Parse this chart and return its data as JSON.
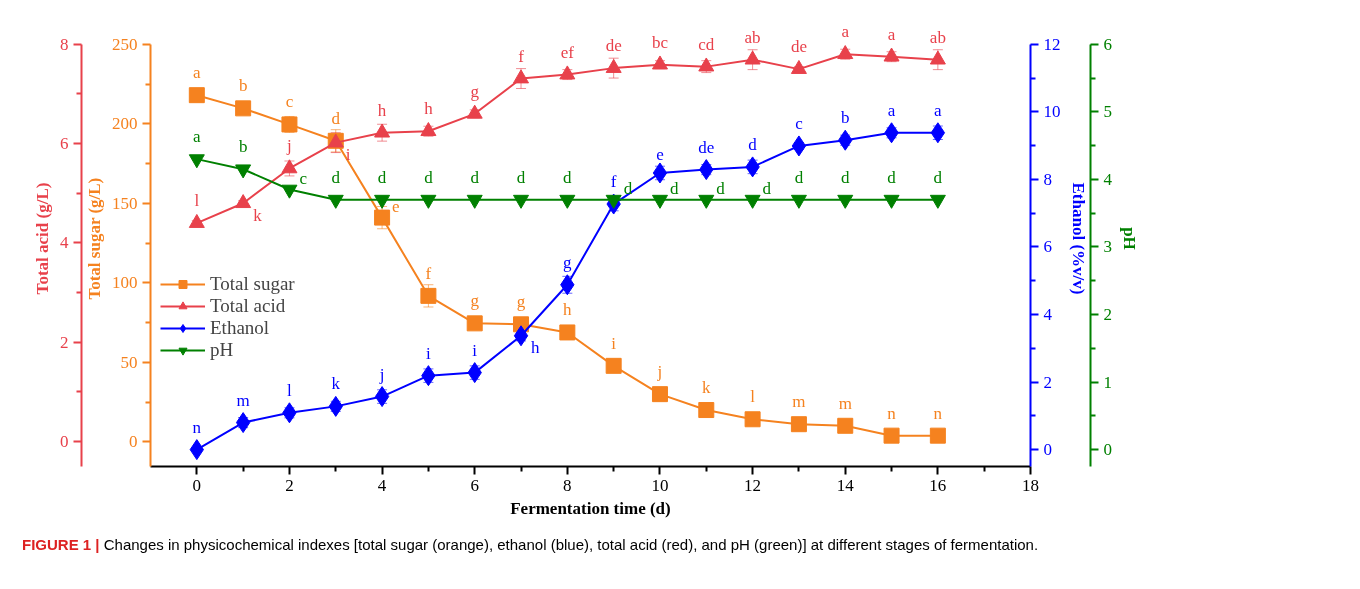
{
  "chart_data": [
    {
      "type": "line",
      "xlabel": "Fermentation time (d)",
      "ylabel": "Total sugar (g/L)",
      "y2label": "Ethanol (%v/v)",
      "y3label": "Total acid (g/L)",
      "x": [
        0,
        1,
        2,
        3,
        4,
        5,
        6,
        7,
        8,
        9,
        10,
        11,
        12,
        13,
        14,
        15,
        16
      ],
      "xlim": [
        -1,
        18
      ],
      "xticks": [
        0,
        2,
        4,
        6,
        8,
        10,
        12,
        14,
        16,
        18
      ],
      "ylim": [
        -15.5,
        250
      ],
      "yticks": [
        0,
        50,
        100,
        150,
        200,
        250
      ],
      "y2lim": [
        -0.5,
        12
      ],
      "y2ticks": [
        0,
        2,
        4,
        6,
        8,
        10,
        12
      ],
      "y3lim": [
        -0.5,
        8
      ],
      "y3ticks": [
        0,
        2,
        4,
        6,
        8
      ],
      "legend": "left",
      "grid": false,
      "line_style": "solid",
      "series": [
        {
          "name": "Total sugar",
          "color": "#f5821f",
          "marker": "square",
          "values": [
            218,
            209.7,
            199.6,
            189.3,
            141,
            91.8,
            74.5,
            73.9,
            68.8,
            47.8,
            30,
            20,
            14.2,
            11.1,
            10.1,
            3.9,
            3.9
          ],
          "errors": [
            1,
            1,
            5,
            7,
            7,
            7,
            3,
            3,
            4,
            4,
            4,
            4,
            3,
            1,
            1,
            1,
            1
          ],
          "value_labels": [
            "a",
            "b",
            "c",
            "d",
            "e",
            "f",
            "g",
            "g",
            "h",
            "i",
            "j",
            "k",
            "l",
            "m",
            "m",
            "n",
            "n"
          ]
        },
        {
          "name": "Total acid",
          "color": "#e8414b",
          "axis": "y3",
          "marker": "triangle",
          "values": [
            4.4,
            4.8,
            5.5,
            6.02,
            6.22,
            6.25,
            6.6,
            7.31,
            7.39,
            7.52,
            7.59,
            7.55,
            7.69,
            7.5,
            7.8,
            7.75,
            7.69
          ],
          "errors": [
            0.05,
            0.05,
            0.15,
            0.2,
            0.17,
            0.1,
            0.08,
            0.2,
            0.1,
            0.2,
            0.08,
            0.12,
            0.2,
            0.05,
            0.1,
            0.1,
            0.2
          ],
          "value_labels": [
            "l",
            "k",
            "j",
            "i",
            "h",
            "h",
            "g",
            "f",
            "ef",
            "de",
            "bc",
            "cd",
            "ab",
            "de",
            "a",
            "a",
            "ab"
          ]
        },
        {
          "name": "Ethanol",
          "color": "#0000ff",
          "axis": "y2",
          "marker": "diamond",
          "values": [
            0,
            0.8,
            1.09,
            1.28,
            1.57,
            2.19,
            2.28,
            3.37,
            4.88,
            7.27,
            8.19,
            8.29,
            8.37,
            8.99,
            9.16,
            9.38,
            9.38
          ],
          "errors": [
            0.05,
            0.15,
            0.15,
            0.15,
            0.2,
            0.2,
            0.2,
            0.15,
            0.25,
            0.2,
            0.2,
            0.15,
            0.2,
            0.1,
            0.15,
            0.15,
            0.2
          ],
          "value_labels": [
            "n",
            "m",
            "l",
            "k",
            "j",
            "i",
            "i",
            "h",
            "g",
            "f",
            "e",
            "de",
            "d",
            "c",
            "b",
            "a",
            "a"
          ]
        }
      ],
      "annotations": [
        "FIGURE 1 | Changes in physicochemical indexes [total sugar (orange), ethanol (blue), total acid (red), and pH (green)] at different stages of fermentation."
      ]
    },
    {
      "type": "line",
      "ylabel": "pH",
      "x": [
        0,
        1,
        2,
        3,
        4,
        5,
        6,
        7,
        8,
        9,
        10,
        11,
        12,
        13,
        14,
        15,
        16
      ],
      "xlim": [
        -1,
        18
      ],
      "ylim": [
        -0.25,
        6
      ],
      "yticks": [
        0,
        1,
        2,
        3,
        4,
        5,
        6
      ],
      "tick_labels": "y",
      "series": [
        {
          "name": "pH",
          "color": "#008000",
          "marker": "triangle",
          "values": [
            4.3,
            4.15,
            3.85,
            3.7,
            3.7,
            3.7,
            3.7,
            3.7,
            3.7,
            3.7,
            3.7,
            3.7,
            3.7,
            3.7,
            3.7,
            3.7,
            3.7
          ],
          "value_labels": [
            "a",
            "b",
            "c",
            "d",
            "d",
            "d",
            "d",
            "d",
            "d",
            "d",
            "d",
            "d",
            "d",
            "d",
            "d",
            "d",
            "d"
          ]
        }
      ]
    }
  ]
}
